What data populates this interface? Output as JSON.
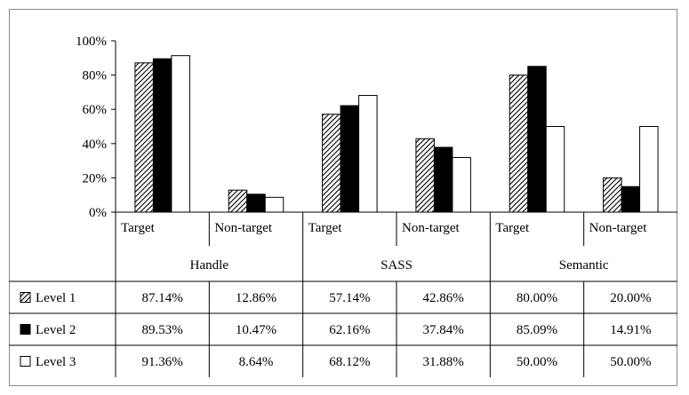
{
  "chart_data": {
    "type": "bar",
    "title": "",
    "xlabel": "",
    "ylabel": "",
    "ylim": [
      0,
      100
    ],
    "yticks": [
      "0%",
      "20%",
      "40%",
      "60%",
      "80%",
      "100%"
    ],
    "groups": [
      "Handle",
      "SASS",
      "Semantic"
    ],
    "categories": [
      "Target",
      "Non-target",
      "Target",
      "Non-target",
      "Target",
      "Non-target"
    ],
    "series": [
      {
        "name": "Level 1",
        "values": [
          87.14,
          12.86,
          57.14,
          42.86,
          80.0,
          20.0
        ],
        "labels": [
          "87.14%",
          "12.86%",
          "57.14%",
          "42.86%",
          "80.00%",
          "20.00%"
        ]
      },
      {
        "name": "Level 2",
        "values": [
          89.53,
          10.47,
          62.16,
          37.84,
          85.09,
          14.91
        ],
        "labels": [
          "89.53%",
          "10.47%",
          "62.16%",
          "37.84%",
          "85.09%",
          "14.91%"
        ]
      },
      {
        "name": "Level 3",
        "values": [
          91.36,
          8.64,
          68.12,
          31.88,
          50.0,
          50.0
        ],
        "labels": [
          "91.36%",
          "8.64%",
          "68.12%",
          "31.88%",
          "50.00%",
          "50.00%"
        ]
      }
    ],
    "series_fills": [
      "hatched",
      "#000000",
      "#ffffff"
    ],
    "grid": false,
    "legend": "data-table"
  }
}
